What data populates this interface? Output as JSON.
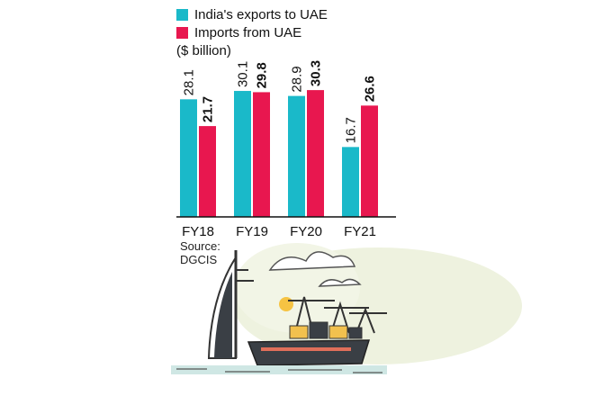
{
  "chart_data": {
    "type": "bar",
    "categories": [
      "FY18",
      "FY19",
      "FY20",
      "FY21"
    ],
    "series": [
      {
        "name": "India's exports to UAE",
        "values": [
          28.1,
          30.1,
          28.9,
          16.7
        ],
        "color": "#1ab9c9"
      },
      {
        "name": "Imports from UAE",
        "values": [
          21.7,
          29.8,
          30.3,
          26.6
        ],
        "color": "#e8174f"
      }
    ],
    "unit_label": "($ billion)",
    "ylim": [
      0,
      34
    ],
    "grid": false,
    "legend_position": "top-left",
    "source_label": "Source:",
    "source_name": "DGCIS"
  }
}
